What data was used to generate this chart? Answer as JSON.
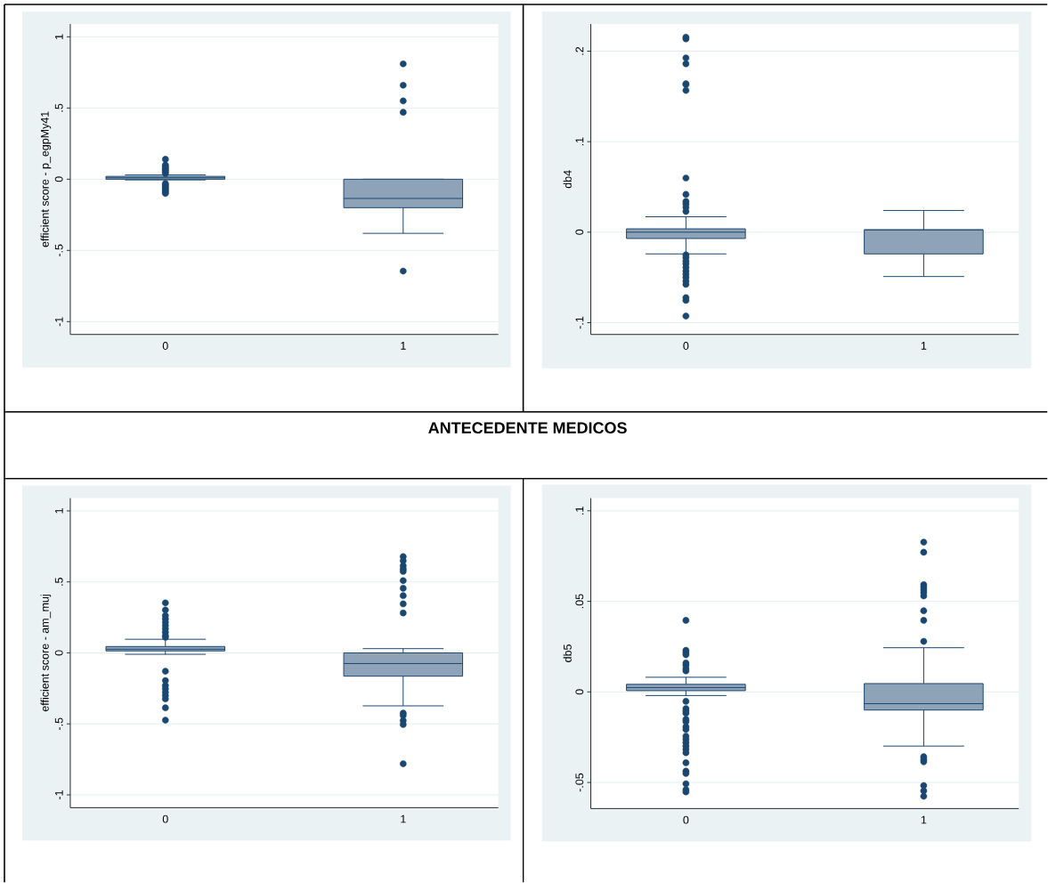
{
  "chart_data": [
    {
      "type": "box",
      "ylabel": "efficient score - p_egpMy41",
      "categories": [
        "0",
        "1"
      ],
      "color": "#8fa3b8",
      "grid": "y",
      "ylim": [
        -1.09,
        1.09
      ],
      "yticks": [
        {
          "value": -1,
          "label": "-1"
        },
        {
          "value": -0.5,
          "label": "-.5"
        },
        0,
        {
          "value": 0.5,
          "label": ".5"
        },
        1
      ],
      "boxes": [
        {
          "low": -0.005,
          "q1": 0.0,
          "median": 0.01,
          "q3": 0.02,
          "high": 0.03,
          "outliers": [
            0.14,
            0.1,
            0.09,
            0.08,
            0.07,
            0.06,
            0.05,
            0.04,
            -0.03,
            -0.04,
            -0.05,
            -0.06,
            -0.07,
            -0.08,
            -0.09,
            -0.1
          ]
        },
        {
          "low": -0.38,
          "q1": -0.2,
          "median": -0.135,
          "q3": 0.0,
          "high": 0.0,
          "outliers": [
            0.81,
            0.66,
            0.55,
            0.47,
            -0.645
          ]
        }
      ]
    },
    {
      "type": "box",
      "ylabel": "db4",
      "categories": [
        "0",
        "1"
      ],
      "color": "#8fa3b8",
      "grid": "y",
      "ylim": [
        -0.113,
        0.23
      ],
      "yticks": [
        {
          "value": -0.1,
          "label": "-.1"
        },
        0,
        {
          "value": 0.1,
          "label": ".1"
        },
        {
          "value": 0.2,
          "label": ".2"
        }
      ],
      "boxes": [
        {
          "low": -0.024,
          "q1": -0.007,
          "median": 0.0,
          "q3": 0.0037,
          "high": 0.017,
          "outliers": [
            0.2154,
            0.2135,
            0.1925,
            0.186,
            0.164,
            0.163,
            0.1566,
            0.0598,
            0.0417,
            0.034,
            0.031,
            0.0273,
            0.0229,
            -0.025,
            -0.028,
            -0.032,
            -0.035,
            -0.039,
            -0.043,
            -0.0465,
            -0.05,
            -0.054,
            -0.0576,
            -0.0724,
            -0.0754,
            -0.0927
          ]
        },
        {
          "low": -0.049,
          "q1": -0.024,
          "median": 0.0026,
          "q3": 0.0026,
          "high": 0.024
        }
      ]
    },
    {
      "type": "box",
      "title": "ANTECEDENTE MEDICOS",
      "ylabel": "efficient score - am_muj",
      "categories": [
        "0",
        "1"
      ],
      "color": "#8fa3b8",
      "grid": "y",
      "ylim": [
        -1.09,
        1.09
      ],
      "yticks": [
        {
          "value": -1,
          "label": "-1"
        },
        {
          "value": -0.5,
          "label": "-.5"
        },
        0,
        {
          "value": 0.5,
          "label": ".5"
        },
        1
      ],
      "boxes": [
        {
          "low": -0.01,
          "q1": 0.014,
          "median": 0.026,
          "q3": 0.045,
          "high": 0.096,
          "outliers": [
            0.352,
            0.302,
            0.263,
            0.24,
            0.216,
            0.192,
            0.169,
            0.145,
            0.122,
            0.11,
            -0.129,
            -0.195,
            -0.23,
            -0.253,
            -0.277,
            -0.3,
            -0.324,
            -0.387,
            -0.474
          ]
        },
        {
          "low": -0.373,
          "q1": -0.164,
          "median": -0.075,
          "q3": 0.0,
          "high": 0.03,
          "outliers": [
            0.678,
            0.649,
            0.614,
            0.591,
            0.574,
            0.509,
            0.455,
            0.403,
            0.345,
            0.281,
            -0.424,
            -0.44,
            -0.476,
            -0.504,
            -0.781
          ]
        }
      ]
    },
    {
      "type": "box",
      "ylabel": "db5",
      "categories": [
        "0",
        "1"
      ],
      "color": "#8fa3b8",
      "grid": "y",
      "ylim": [
        -0.0644,
        0.107
      ],
      "yticks": [
        {
          "value": -0.05,
          "label": "-.05"
        },
        0,
        {
          "value": 0.05,
          "label": ".05"
        },
        {
          "value": 0.1,
          "label": ".1"
        }
      ],
      "boxes": [
        {
          "low": -0.002,
          "q1": 0.0007,
          "median": 0.0024,
          "q3": 0.0042,
          "high": 0.0081,
          "outliers": [
            0.0395,
            0.023,
            0.0218,
            0.0205,
            0.016,
            0.0148,
            0.0129,
            0.0116,
            -0.0052,
            -0.0092,
            -0.0105,
            -0.0118,
            -0.0151,
            -0.0164,
            -0.0192,
            -0.0207,
            -0.0244,
            -0.0262,
            -0.028,
            -0.0299,
            -0.0317,
            -0.0336,
            -0.0391,
            -0.0437,
            -0.045,
            -0.0507,
            -0.0539,
            -0.0552
          ]
        },
        {
          "low": -0.0299,
          "q1": -0.01,
          "median": -0.0065,
          "q3": 0.0046,
          "high": 0.0244,
          "outliers": [
            0.0827,
            0.0771,
            0.0592,
            0.0578,
            0.0563,
            0.0548,
            0.053,
            0.0448,
            0.0395,
            0.0279,
            -0.0358,
            -0.0373,
            -0.0386,
            -0.0517,
            -0.0546,
            -0.0576
          ]
        }
      ]
    }
  ]
}
